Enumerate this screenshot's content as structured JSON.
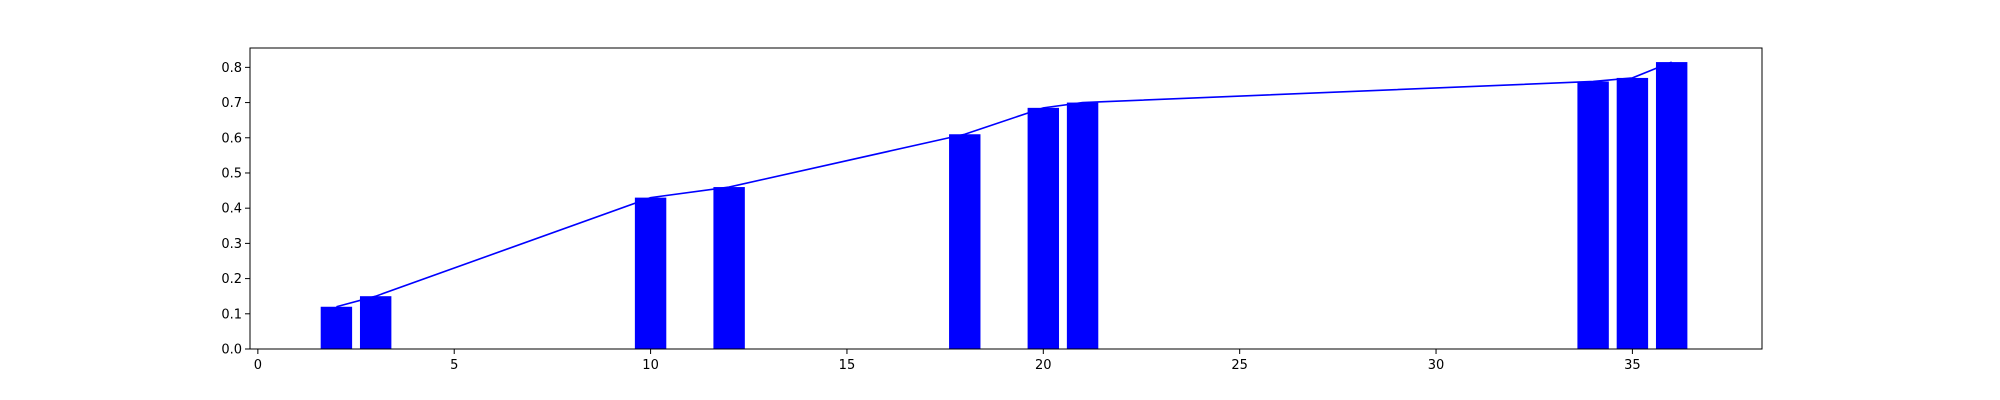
{
  "chart_data": {
    "type": "bar",
    "title": "",
    "xlabel": "",
    "ylabel": "",
    "xlim": [
      -0.2,
      38.3
    ],
    "ylim": [
      0,
      0.855
    ],
    "grid": false,
    "bar_width": 0.8,
    "x_ticks": [
      0,
      5,
      10,
      15,
      20,
      25,
      30,
      35
    ],
    "y_ticks": [
      0.0,
      0.1,
      0.2,
      0.3,
      0.4,
      0.5,
      0.6,
      0.7,
      0.8
    ],
    "x": [
      2,
      3,
      10,
      12,
      18,
      20,
      21,
      34,
      35,
      36
    ],
    "series": [
      {
        "kind": "bar",
        "color": "#0000ff",
        "values": [
          0.12,
          0.15,
          0.43,
          0.46,
          0.61,
          0.685,
          0.7,
          0.76,
          0.77,
          0.815
        ]
      },
      {
        "kind": "line",
        "color": "#0000ff",
        "values": [
          0.12,
          0.15,
          0.43,
          0.46,
          0.61,
          0.685,
          0.7,
          0.76,
          0.77,
          0.815
        ]
      }
    ]
  }
}
